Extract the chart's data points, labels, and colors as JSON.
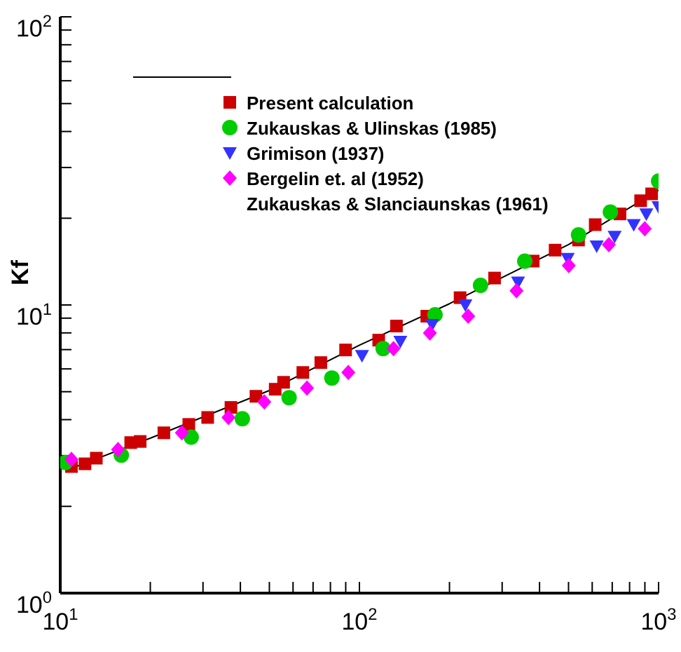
{
  "chart_data": {
    "type": "scatter",
    "ylabel": "Kf",
    "log": "xy",
    "grid": false,
    "legend": "top",
    "xlim": [
      10,
      1000
    ],
    "ylim": [
      1,
      100
    ],
    "xticks": [
      {
        "value": 10,
        "label": "10$^{1}$"
      },
      {
        "value": 20,
        "label": null
      },
      {
        "value": 30,
        "label": null
      },
      {
        "value": 40,
        "label": null
      },
      {
        "value": 50,
        "label": null
      },
      {
        "value": 60,
        "label": null
      },
      {
        "value": 70,
        "label": null
      },
      {
        "value": 80,
        "label": null
      },
      {
        "value": 90,
        "label": null
      },
      {
        "value": 100,
        "label": "10$^{2}$"
      },
      {
        "value": 200,
        "label": null
      },
      {
        "value": 300,
        "label": null
      },
      {
        "value": 400,
        "label": null
      },
      {
        "value": 500,
        "label": null
      },
      {
        "value": 600,
        "label": null
      },
      {
        "value": 700,
        "label": null
      },
      {
        "value": 800,
        "label": null
      },
      {
        "value": 900,
        "label": null
      },
      {
        "value": 1000,
        "label": "10$^{3}$"
      }
    ],
    "yticks": [
      {
        "value": 1,
        "label": "10$^{0}$"
      },
      {
        "value": 2,
        "label": null
      },
      {
        "value": 3,
        "label": null
      },
      {
        "value": 4,
        "label": null
      },
      {
        "value": 5,
        "label": null
      },
      {
        "value": 6,
        "label": null
      },
      {
        "value": 7,
        "label": null
      },
      {
        "value": 8,
        "label": null
      },
      {
        "value": 9,
        "label": null
      },
      {
        "value": 10,
        "label": "10$^{1}$"
      },
      {
        "value": 20,
        "label": null
      },
      {
        "value": 30,
        "label": null
      },
      {
        "value": 40,
        "label": null
      },
      {
        "value": 50,
        "label": null
      },
      {
        "value": 60,
        "label": null
      },
      {
        "value": 70,
        "label": null
      },
      {
        "value": 80,
        "label": null
      },
      {
        "value": 90,
        "label": null
      },
      {
        "value": 100,
        "label": "10$^{2}$"
      }
    ],
    "annotations": [
      "Zukauskas & Slanciaunskas (1961)"
    ],
    "series": [
      {
        "type": "line",
        "marker": "none",
        "color": "#000000",
        "x": [
          11,
          20,
          50,
          100,
          200,
          500,
          1000
        ],
        "values": [
          2.72,
          3.45,
          5.05,
          7.25,
          10.1,
          16.2,
          25.0
        ]
      },
      {
        "name": "Present calculation",
        "marker": "square",
        "color": "#cc0000",
        "x": [
          10.9,
          12.1,
          13.2,
          17.2,
          18.5,
          22.2,
          26.9,
          31.1,
          37.2,
          45.1,
          52.3,
          55.8,
          64.7,
          74.3,
          89.9,
          116,
          133,
          168,
          217,
          283,
          381,
          451,
          540,
          614,
          743,
          871,
          948
        ],
        "values": [
          2.75,
          2.81,
          2.94,
          3.33,
          3.36,
          3.6,
          3.85,
          4.07,
          4.41,
          4.82,
          5.1,
          5.39,
          5.83,
          6.31,
          6.98,
          7.55,
          8.45,
          9.14,
          10.6,
          12.4,
          14.2,
          15.5,
          16.8,
          19.0,
          20.7,
          23.0,
          24.3
        ]
      },
      {
        "name": "Zukauskas & Ulinskas (1985)",
        "marker": "circle",
        "color": "#00cc00",
        "x": [
          10.4,
          16.0,
          27.4,
          40.6,
          58.2,
          80.9,
          120,
          179,
          254,
          357,
          540,
          690,
          1000
        ],
        "values": [
          2.84,
          3.01,
          3.48,
          4.03,
          4.77,
          5.58,
          7.06,
          9.25,
          11.7,
          14.2,
          17.5,
          21.0,
          26.9
        ]
      },
      {
        "name": "Grimison (1937)",
        "marker": "triangle",
        "color": "#3333ff",
        "x": [
          102,
          137,
          175,
          226,
          339,
          497,
          621,
          713,
          826,
          910,
          1000
        ],
        "values": [
          6.67,
          7.47,
          8.55,
          10.0,
          12.0,
          14.5,
          16.0,
          17.3,
          19.0,
          20.7,
          21.9
        ]
      },
      {
        "name": "Bergelin et. al (1952)",
        "marker": "diamond",
        "color": "#ff00ff",
        "x": [
          10.9,
          15.6,
          25.5,
          36.5,
          48.1,
          66.8,
          91.8,
          130,
          172,
          231,
          335,
          501,
          682,
          899
        ],
        "values": [
          2.91,
          3.15,
          3.6,
          4.07,
          4.61,
          5.15,
          5.83,
          7.06,
          7.99,
          9.14,
          11.2,
          13.7,
          16.2,
          18.4
        ]
      }
    ]
  }
}
